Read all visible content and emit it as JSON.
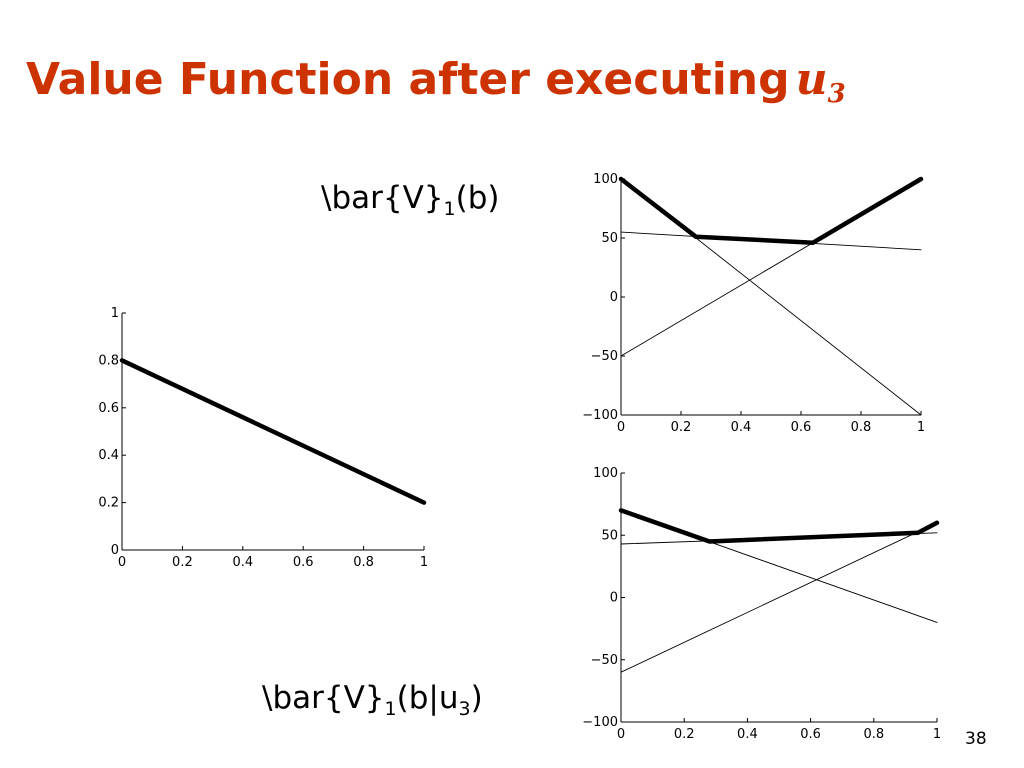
{
  "slide": {
    "title_text": "Value Function after executing",
    "title_math_base": "u",
    "title_math_sub": "3",
    "page_number": "38",
    "title_color": "#cc3300"
  },
  "labels": {
    "top": {
      "pre": "\\bar{V}",
      "sub": "1",
      "post": "(b)"
    },
    "bottom": {
      "pre": "\\bar{V}",
      "sub": "1",
      "mid": "(b|u",
      "sub2": "3",
      "post": ")"
    }
  },
  "chart_data": [
    {
      "type": "line",
      "xlim": [
        0,
        1
      ],
      "ylim": [
        0,
        1
      ],
      "xticks": [
        "0",
        "0.2",
        "0.4",
        "0.6",
        "0.8",
        "1"
      ],
      "yticks": [
        "0",
        "0.2",
        "0.4",
        "0.6",
        "0.8",
        "1"
      ],
      "series": [
        {
          "x": [
            0,
            1
          ],
          "y": [
            0.8,
            0.2
          ],
          "bold": true
        }
      ]
    },
    {
      "type": "line",
      "xlim": [
        0,
        1
      ],
      "ylim": [
        -100,
        100
      ],
      "xticks": [
        "0",
        "0.2",
        "0.4",
        "0.6",
        "0.8",
        "1"
      ],
      "yticks": [
        "−100",
        "−50",
        "0",
        "50",
        "100"
      ],
      "series": [
        {
          "x": [
            0,
            1
          ],
          "y": [
            100,
            -100
          ],
          "bold": false
        },
        {
          "x": [
            0,
            1
          ],
          "y": [
            55,
            40
          ],
          "bold": false
        },
        {
          "x": [
            0,
            1
          ],
          "y": [
            -50,
            100
          ],
          "bold": false
        },
        {
          "x": [
            0,
            0.25,
            0.64,
            1
          ],
          "y": [
            100,
            51,
            46,
            100
          ],
          "bold": true
        }
      ]
    },
    {
      "type": "line",
      "xlim": [
        0,
        1
      ],
      "ylim": [
        -100,
        100
      ],
      "xticks": [
        "0",
        "0.2",
        "0.4",
        "0.6",
        "0.8",
        "1"
      ],
      "yticks": [
        "−100",
        "−50",
        "0",
        "50",
        "100"
      ],
      "series": [
        {
          "x": [
            0,
            1
          ],
          "y": [
            70,
            -20
          ],
          "bold": false
        },
        {
          "x": [
            0,
            1
          ],
          "y": [
            43,
            52
          ],
          "bold": false
        },
        {
          "x": [
            0,
            1
          ],
          "y": [
            -60,
            60
          ],
          "bold": false
        },
        {
          "x": [
            0,
            0.28,
            0.94,
            1
          ],
          "y": [
            70,
            45,
            52,
            60
          ],
          "bold": true
        }
      ]
    }
  ]
}
